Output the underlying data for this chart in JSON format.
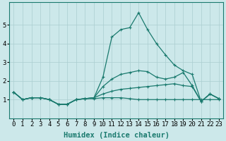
{
  "xlabel": "Humidex (Indice chaleur)",
  "background_color": "#cce8ea",
  "line_color": "#1a7a6e",
  "grid_color": "#aacdd0",
  "x": [
    0,
    1,
    2,
    3,
    4,
    5,
    6,
    7,
    8,
    9,
    10,
    11,
    12,
    13,
    14,
    15,
    16,
    17,
    18,
    19,
    20,
    21,
    22,
    23
  ],
  "series": [
    [
      1.4,
      1.0,
      1.1,
      1.1,
      1.0,
      0.75,
      0.75,
      1.0,
      1.05,
      1.05,
      1.1,
      1.1,
      1.1,
      1.05,
      1.0,
      1.0,
      1.0,
      1.0,
      1.0,
      1.0,
      1.0,
      1.0,
      1.0,
      1.0
    ],
    [
      1.4,
      1.0,
      1.1,
      1.1,
      1.0,
      0.75,
      0.75,
      1.0,
      1.05,
      1.1,
      1.3,
      1.45,
      1.55,
      1.6,
      1.65,
      1.7,
      1.75,
      1.8,
      1.85,
      1.75,
      1.7,
      0.9,
      1.3,
      1.05
    ],
    [
      1.4,
      1.0,
      1.1,
      1.1,
      1.0,
      0.75,
      0.75,
      1.0,
      1.05,
      1.1,
      1.7,
      2.1,
      2.35,
      2.45,
      2.55,
      2.5,
      2.2,
      2.1,
      2.2,
      2.45,
      1.75,
      0.9,
      1.3,
      1.05
    ],
    [
      1.4,
      1.0,
      1.1,
      1.1,
      1.0,
      0.75,
      0.75,
      1.0,
      1.05,
      1.1,
      2.2,
      4.35,
      4.75,
      4.85,
      5.65,
      4.75,
      4.0,
      3.4,
      2.85,
      2.55,
      2.35,
      0.9,
      1.3,
      1.05
    ]
  ],
  "ylim": [
    0,
    6.2
  ],
  "yticks": [
    1,
    2,
    3,
    4,
    5
  ],
  "xticks": [
    0,
    1,
    2,
    3,
    4,
    5,
    6,
    7,
    8,
    9,
    10,
    11,
    12,
    13,
    14,
    15,
    16,
    17,
    18,
    19,
    20,
    21,
    22,
    23
  ],
  "tick_fontsize": 6.5,
  "xlabel_fontsize": 7.5
}
